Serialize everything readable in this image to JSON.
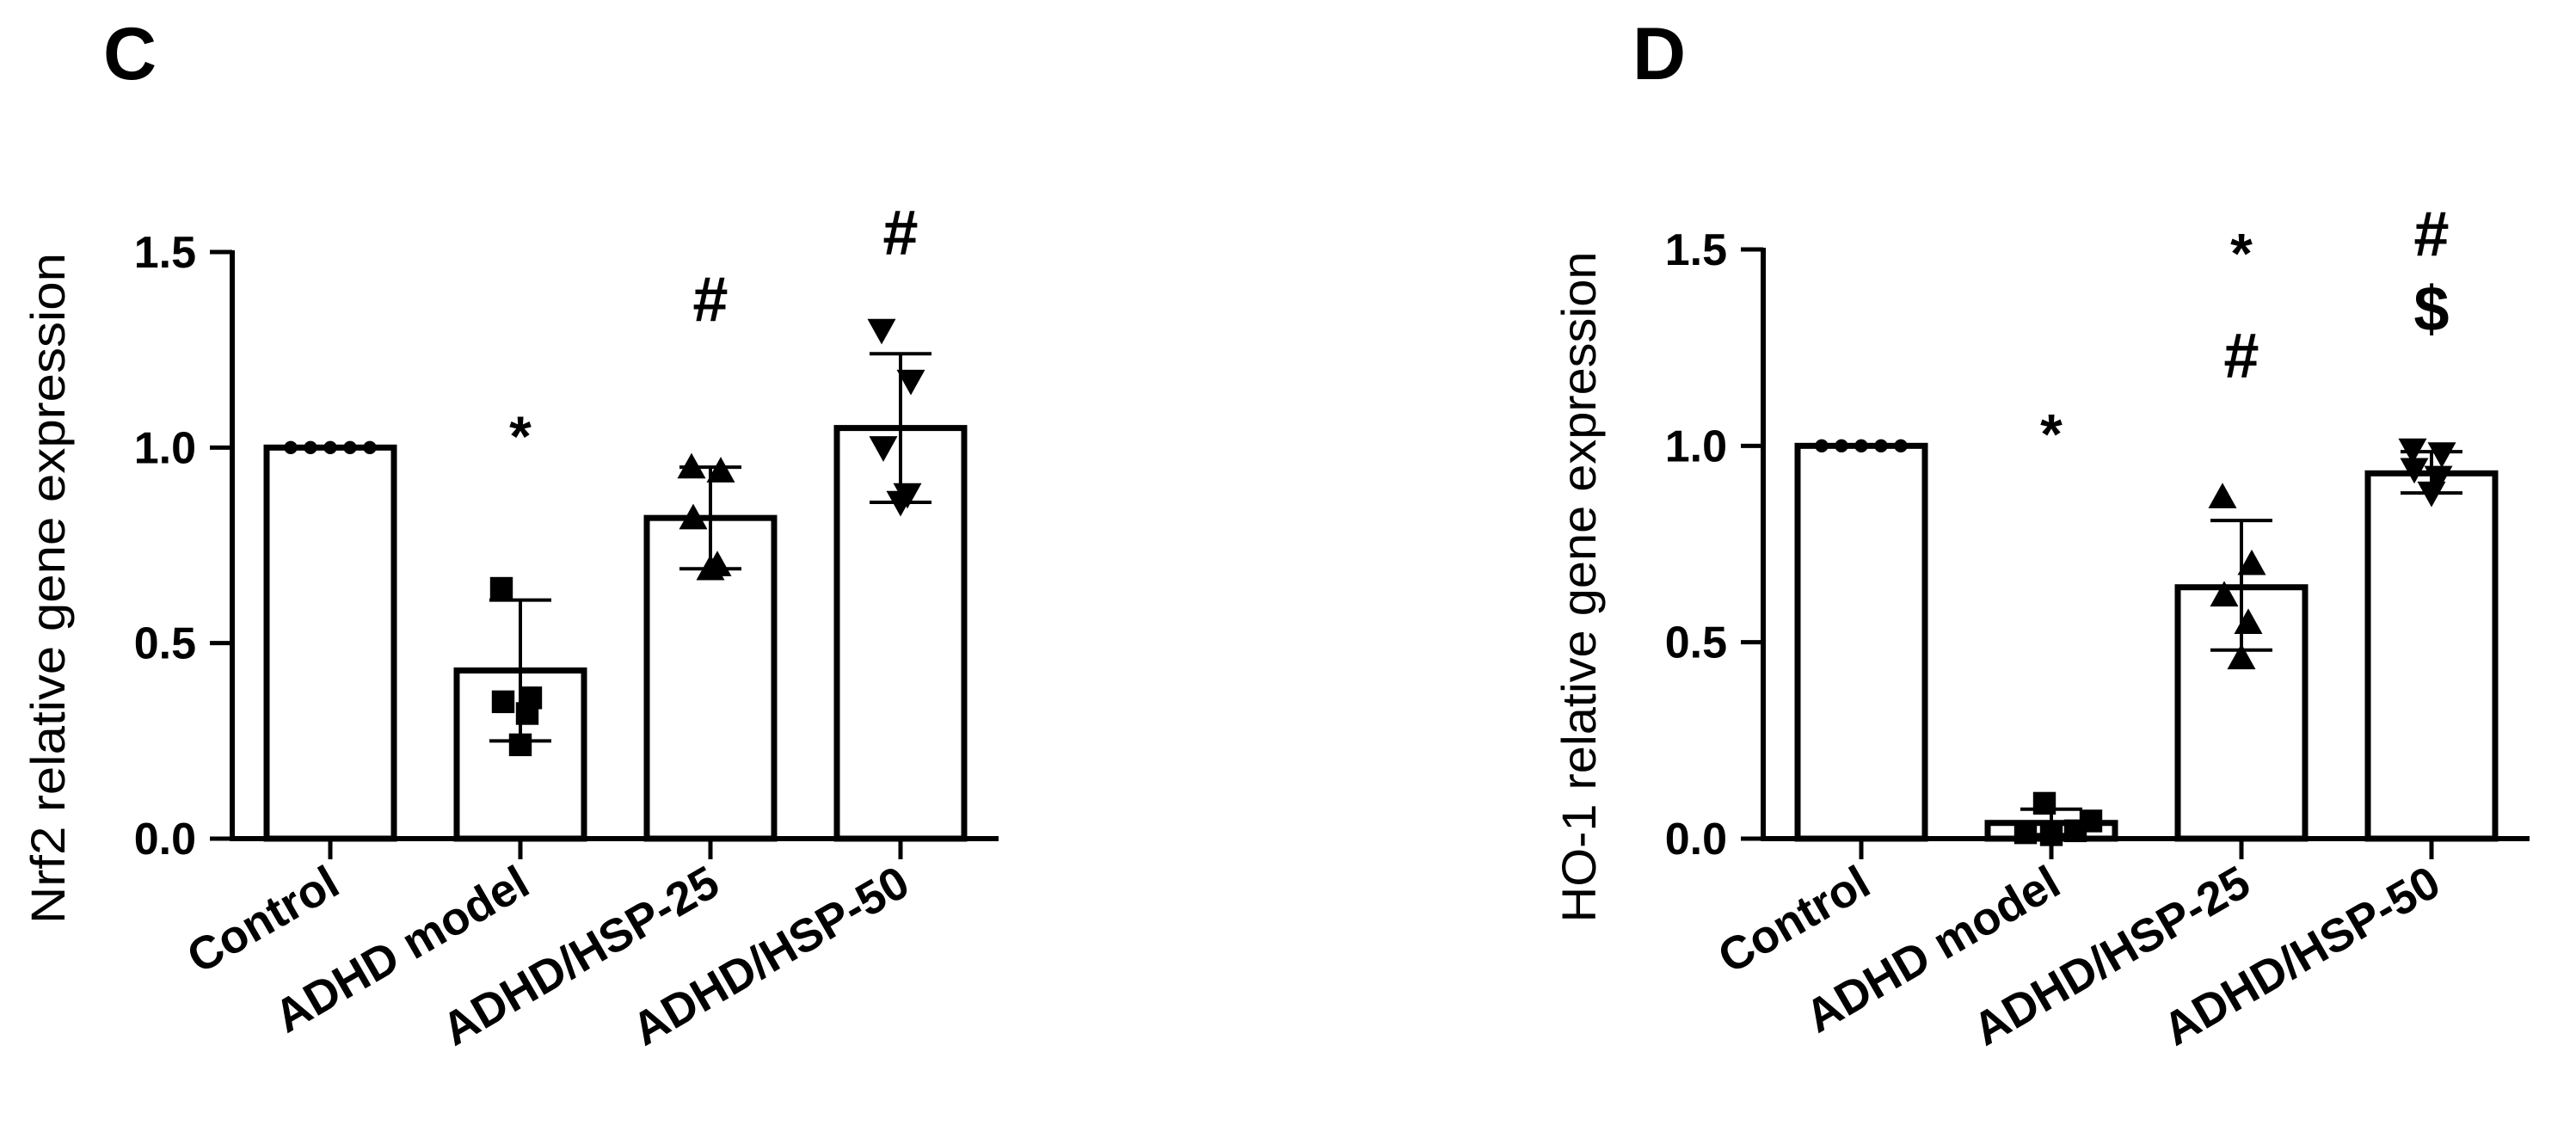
{
  "chart_data": [
    {
      "type": "bar",
      "panel_label": "C",
      "ylabel": "Nrf2 relative gene expression",
      "xlabel": "",
      "ylim": [
        0,
        1.5
      ],
      "yticks": [
        "0.0",
        "0.5",
        "1.0",
        "1.5"
      ],
      "categories": [
        "Control",
        "ADHD model",
        "ADHD/HSP-25",
        "ADHD/HSP-50"
      ],
      "values": [
        1.0,
        0.43,
        0.82,
        1.05
      ],
      "error_low": [
        1.0,
        0.25,
        0.69,
        0.86
      ],
      "error_high": [
        1.0,
        0.61,
        0.95,
        1.24
      ],
      "markers": [
        "circle",
        "square",
        "triangle-up",
        "triangle-down"
      ],
      "points": [
        [
          1.0,
          1.0,
          1.0,
          1.0,
          1.0
        ],
        [
          0.64,
          0.36,
          0.35,
          0.32,
          0.24
        ],
        [
          0.95,
          0.94,
          0.82,
          0.7,
          0.69
        ],
        [
          1.3,
          1.17,
          1.0,
          0.88,
          0.86
        ]
      ],
      "annotations": [
        [
          "",
          ""
        ],
        [
          "*"
        ],
        [
          "#"
        ],
        [
          "#"
        ]
      ]
    },
    {
      "type": "bar",
      "panel_label": "D",
      "ylabel": "HO-1 relative gene expression",
      "xlabel": "",
      "ylim": [
        0,
        1.5
      ],
      "yticks": [
        "0.0",
        "0.5",
        "1.0",
        "1.5"
      ],
      "categories": [
        "Control",
        "ADHD model",
        "ADHD/HSP-25",
        "ADHD/HSP-50"
      ],
      "values": [
        1.0,
        0.04,
        0.64,
        0.93
      ],
      "error_low": [
        1.0,
        0.01,
        0.48,
        0.88
      ],
      "error_high": [
        1.0,
        0.075,
        0.81,
        0.985
      ],
      "markers": [
        "circle",
        "square",
        "triangle-up",
        "triangle-down"
      ],
      "points": [
        [
          1.0,
          1.0,
          1.0,
          1.0,
          1.0
        ],
        [
          0.09,
          0.045,
          0.02,
          0.015,
          0.01
        ],
        [
          0.87,
          0.7,
          0.62,
          0.55,
          0.46
        ],
        [
          0.99,
          0.98,
          0.94,
          0.92,
          0.88
        ]
      ],
      "annotations": [
        [],
        [
          "*"
        ],
        [
          "*",
          "#"
        ],
        [
          "#",
          "$"
        ]
      ]
    }
  ]
}
